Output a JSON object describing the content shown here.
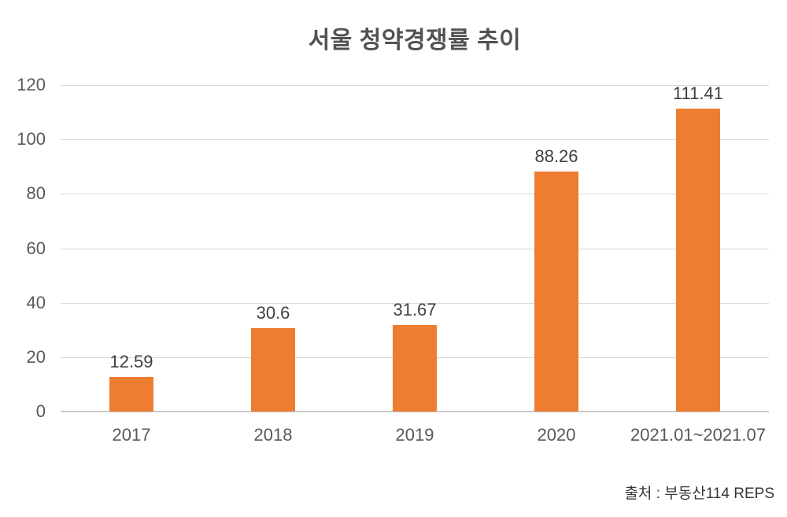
{
  "chart_data": {
    "type": "bar",
    "title": "서울 청약경쟁률 추이",
    "categories": [
      "2017",
      "2018",
      "2019",
      "2020",
      "2021.01~2021.07"
    ],
    "values": [
      12.59,
      30.6,
      31.67,
      88.26,
      111.41
    ],
    "data_labels": [
      "12.59",
      "30.6",
      "31.67",
      "88.26",
      "111.41"
    ],
    "xlabel": "",
    "ylabel": "",
    "ylim": [
      0,
      120
    ],
    "yticks": [
      0,
      20,
      40,
      60,
      80,
      100,
      120
    ],
    "grid": true,
    "legend": false,
    "source_note": "출처 : 부동산114 REPS"
  },
  "colors": {
    "bar": "#ED7D31",
    "title_text": "#525252",
    "axis_text": "#595959",
    "value_label_text": "#404040",
    "gridline": "#D9D9D9",
    "axis_line": "#C9C9C9",
    "background": "#FFFFFF"
  }
}
